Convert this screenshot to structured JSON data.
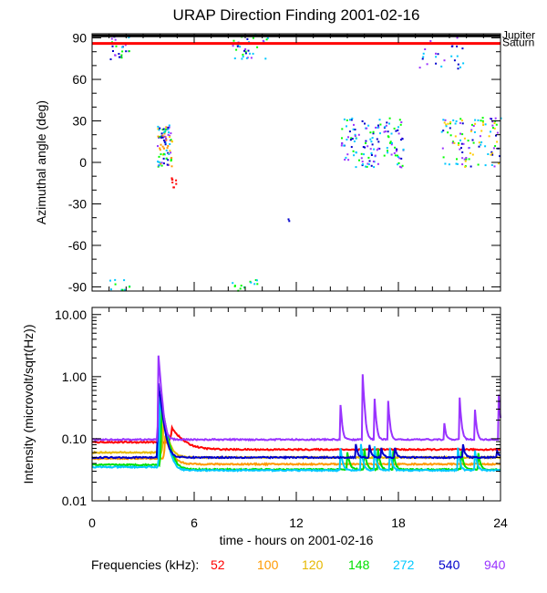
{
  "chart_data": [
    {
      "type": "scatter",
      "title": "URAP Direction Finding  2001-02-16",
      "ylabel": "Azimuthal angle (deg)",
      "xlabel": "",
      "xlim": [
        0,
        24
      ],
      "ylim": [
        -93,
        93
      ],
      "yticks": [
        90,
        60,
        30,
        0,
        -30,
        -60,
        -90
      ],
      "ytick_labels": [
        "90",
        "60",
        "30",
        "0",
        "-30",
        "-60",
        "-90"
      ],
      "reference_lines": [
        {
          "name": "Jupiter",
          "y": 91.5,
          "color": "#000000"
        },
        {
          "name": "Saturn",
          "y": 86,
          "color": "#ff0000"
        }
      ],
      "clusters": [
        {
          "x": [
            1.0,
            2.2
          ],
          "y": [
            75,
            93
          ],
          "n": 25,
          "colors": [
            "#0000cc",
            "#00c8ff",
            "#00ff00",
            "#9933ff"
          ]
        },
        {
          "x": [
            3.8,
            4.7
          ],
          "y": [
            -3,
            28
          ],
          "n": 90,
          "colors": [
            "#0000cc",
            "#00c8ff",
            "#00ff00",
            "#ffcc00",
            "#ff9900",
            "#9933ff"
          ]
        },
        {
          "x": [
            4.5,
            4.9
          ],
          "y": [
            -18,
            -8
          ],
          "n": 8,
          "colors": [
            "#ff0000"
          ]
        },
        {
          "x": [
            8.2,
            10.3
          ],
          "y": [
            75,
            93
          ],
          "n": 35,
          "colors": [
            "#0000cc",
            "#00c8ff",
            "#00ff00",
            "#9933ff"
          ]
        },
        {
          "x": [
            0.9,
            2.2
          ],
          "y": [
            -93,
            -84
          ],
          "n": 10,
          "colors": [
            "#00ff00",
            "#00c8ff"
          ]
        },
        {
          "x": [
            8.2,
            9.8
          ],
          "y": [
            -93,
            -84
          ],
          "n": 14,
          "colors": [
            "#00ff00",
            "#00c8ff"
          ]
        },
        {
          "x": [
            14.6,
            18.3
          ],
          "y": [
            -3,
            33
          ],
          "n": 140,
          "colors": [
            "#0000cc",
            "#00c8ff",
            "#00ff00",
            "#9933ff"
          ]
        },
        {
          "x": [
            20.5,
            24.0
          ],
          "y": [
            -3,
            33
          ],
          "n": 110,
          "colors": [
            "#0000cc",
            "#00c8ff",
            "#00ff00",
            "#ffcc00",
            "#9933ff"
          ]
        },
        {
          "x": [
            19.2,
            21.8
          ],
          "y": [
            68,
            93
          ],
          "n": 25,
          "colors": [
            "#0000cc",
            "#00c8ff",
            "#9933ff"
          ]
        },
        {
          "x": [
            11.4,
            11.6
          ],
          "y": [
            -42,
            -40
          ],
          "n": 2,
          "colors": [
            "#0000cc"
          ]
        }
      ]
    },
    {
      "type": "line",
      "xlabel": "time - hours on 2001-02-16",
      "ylabel": "Intensity (microvolt/sqrt(Hz))",
      "yscale": "log",
      "xlim": [
        0,
        24
      ],
      "ylim": [
        0.01,
        13
      ],
      "xticks": [
        0,
        6,
        12,
        18,
        24
      ],
      "xtick_labels": [
        "0",
        "6",
        "12",
        "18",
        "24"
      ],
      "yticks": [
        10,
        1,
        0.1,
        0.01
      ],
      "ytick_labels": [
        "10.00",
        "1.00",
        "0.10",
        "0.01"
      ],
      "series": [
        {
          "name": "52",
          "color": "#ff0000",
          "baseline": 0.088,
          "level_after": 0.067,
          "bumps": [
            [
              4.7,
              0.15,
              0.6
            ]
          ]
        },
        {
          "name": "100",
          "color": "#ff9900",
          "baseline": 0.048,
          "level_after": 0.039,
          "bumps": [
            [
              4.3,
              0.11,
              0.3
            ]
          ]
        },
        {
          "name": "120",
          "color": "#e6b800",
          "baseline": 0.06,
          "level_after": 0.05,
          "bumps": [
            [
              4.2,
              0.2,
              0.25
            ]
          ]
        },
        {
          "name": "148",
          "color": "#00e000",
          "baseline": 0.038,
          "level_after": 0.032,
          "bumps": [
            [
              4.1,
              0.35,
              0.25
            ],
            [
              15.0,
              0.06,
              0.12
            ],
            [
              16.0,
              0.07,
              0.1
            ],
            [
              16.8,
              0.07,
              0.1
            ],
            [
              17.7,
              0.065,
              0.1
            ],
            [
              21.7,
              0.065,
              0.1
            ],
            [
              22.7,
              0.06,
              0.1
            ]
          ]
        },
        {
          "name": "272",
          "color": "#00c8ff",
          "baseline": 0.035,
          "level_after": 0.031,
          "bumps": [
            [
              4.0,
              0.5,
              0.22
            ],
            [
              14.6,
              0.07,
              0.1
            ],
            [
              15.8,
              0.08,
              0.1
            ],
            [
              16.6,
              0.075,
              0.1
            ],
            [
              17.5,
              0.07,
              0.1
            ],
            [
              21.5,
              0.07,
              0.1
            ],
            [
              22.5,
              0.065,
              0.1
            ]
          ]
        },
        {
          "name": "540",
          "color": "#0000cc",
          "baseline": 0.05,
          "level_after": 0.05,
          "bumps": [
            [
              3.9,
              0.8,
              0.18
            ],
            [
              15.5,
              0.08,
              0.1
            ],
            [
              16.3,
              0.08,
              0.1
            ],
            [
              17.0,
              0.07,
              0.1
            ],
            [
              17.8,
              0.07,
              0.1
            ],
            [
              21.8,
              0.08,
              0.1
            ],
            [
              23.8,
              0.065,
              0.1
            ]
          ]
        },
        {
          "name": "940",
          "color": "#9933ff",
          "baseline": 0.097,
          "level_after": 0.097,
          "bumps": [
            [
              3.9,
              2.2,
              0.12
            ],
            [
              14.6,
              0.35,
              0.08
            ],
            [
              15.9,
              1.1,
              0.08
            ],
            [
              16.6,
              0.45,
              0.08
            ],
            [
              17.4,
              0.4,
              0.08
            ],
            [
              20.7,
              0.18,
              0.08
            ],
            [
              21.6,
              0.45,
              0.08
            ],
            [
              22.5,
              0.3,
              0.08
            ],
            [
              23.9,
              0.5,
              0.08
            ]
          ]
        }
      ]
    }
  ],
  "legend": {
    "label": "Frequencies (kHz):",
    "entries": [
      {
        "name": "52",
        "color": "#ff0000"
      },
      {
        "name": "100",
        "color": "#ff9900"
      },
      {
        "name": "120",
        "color": "#e6b800"
      },
      {
        "name": "148",
        "color": "#00e000"
      },
      {
        "name": "272",
        "color": "#00c8ff"
      },
      {
        "name": "540",
        "color": "#0000cc"
      },
      {
        "name": "940",
        "color": "#9933ff"
      }
    ]
  }
}
